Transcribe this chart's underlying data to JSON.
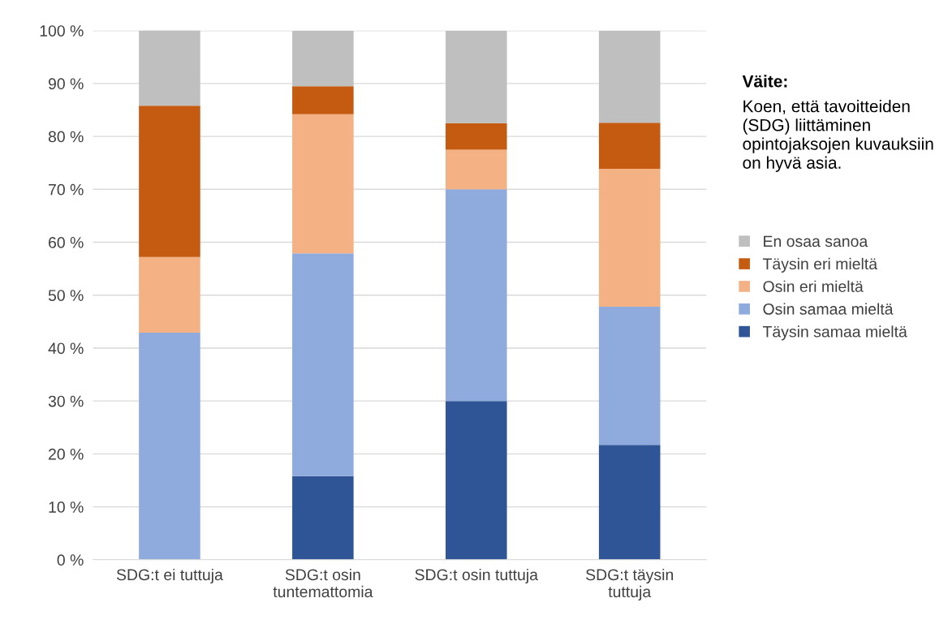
{
  "chart_data": {
    "type": "bar",
    "stacked": true,
    "categories": [
      "SDG:t ei tuttuja",
      "SDG:t osin tuntemattomia",
      "SDG:t osin tuttuja",
      "SDG:t täysin tuttuja"
    ],
    "series": [
      {
        "name": "Täysin samaa mieltä",
        "color": "#2f5597",
        "values": [
          0,
          15.8,
          30,
          21.7
        ]
      },
      {
        "name": "Osin samaa mieltä",
        "color": "#8faadc",
        "values": [
          42.9,
          42.1,
          40,
          26.1
        ]
      },
      {
        "name": "Osin eri mieltä",
        "color": "#f4b183",
        "values": [
          14.3,
          26.3,
          7.5,
          26.1
        ]
      },
      {
        "name": "Täysin eri mieltä",
        "color": "#c55a11",
        "values": [
          28.6,
          5.3,
          5,
          8.7
        ]
      },
      {
        "name": "En osaa sanoa",
        "color": "#bfbfbf",
        "values": [
          14.3,
          10.5,
          17.5,
          17.4
        ]
      }
    ],
    "ylim": [
      0,
      100
    ],
    "yticks": [
      {
        "value": 0,
        "label": "0 %"
      },
      {
        "value": 10,
        "label": "10 %"
      },
      {
        "value": 20,
        "label": "20 %"
      },
      {
        "value": 30,
        "label": "30 %"
      },
      {
        "value": 40,
        "label": "40 %"
      },
      {
        "value": 50,
        "label": "50 %"
      },
      {
        "value": 60,
        "label": "60 %"
      },
      {
        "value": 70,
        "label": "70 %"
      },
      {
        "value": 80,
        "label": "80 %"
      },
      {
        "value": 90,
        "label": "90 %"
      },
      {
        "value": 100,
        "label": "100 %"
      }
    ],
    "grid": "y",
    "legend": "right",
    "annotations": [
      "Väite:",
      "Koen, että tavoitteiden (SDG) liittäminen opintojaksojen kuvauksiin on hyvä asia."
    ]
  }
}
